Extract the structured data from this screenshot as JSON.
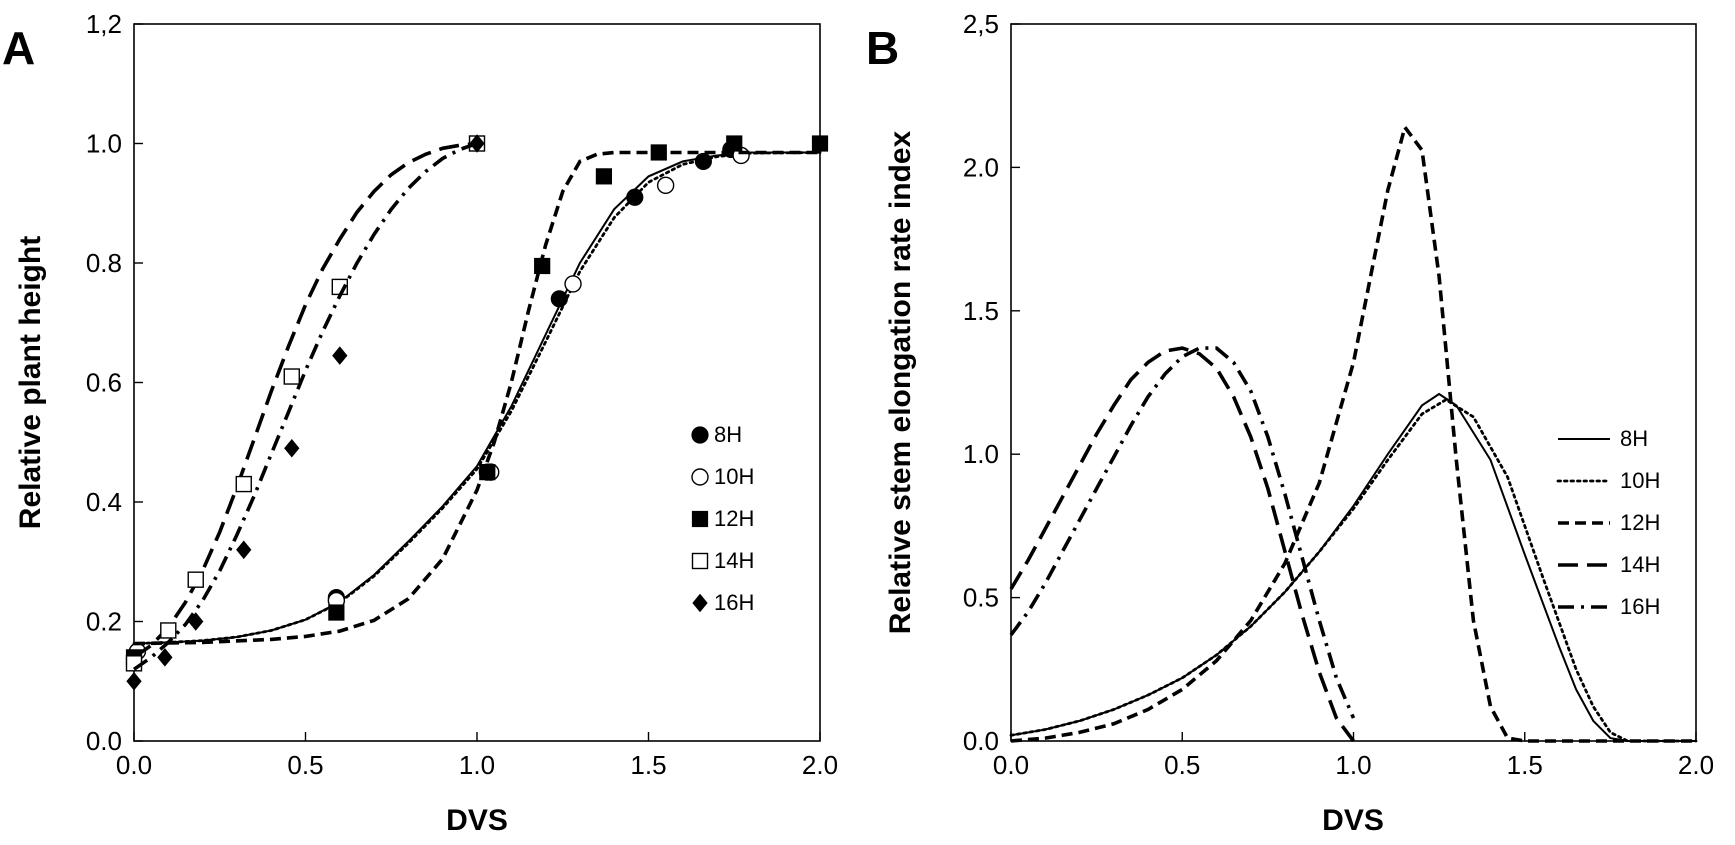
{
  "chart_data": [
    {
      "type": "scatter",
      "panel_label": "A",
      "xlabel": "DVS",
      "ylabel": "Relative plant height",
      "xlim": [
        0.0,
        2.0
      ],
      "ylim": [
        0.0,
        1.2
      ],
      "x_ticks": [
        "0.0",
        "0.5",
        "1.0",
        "1.5",
        "2.0"
      ],
      "y_ticks": [
        "0.0",
        "0.2",
        "0.4",
        "0.6",
        "0.8",
        "1.0",
        "1,2"
      ],
      "grid": false,
      "legend_position": "right-middle",
      "series": [
        {
          "name": "8H",
          "marker": "filled-circle",
          "line": "solid",
          "points": [
            [
              0.01,
              0.15
            ],
            [
              0.59,
              0.24
            ],
            [
              1.03,
              0.45
            ],
            [
              1.24,
              0.74
            ],
            [
              1.46,
              0.91
            ],
            [
              1.66,
              0.97
            ],
            [
              1.74,
              0.99
            ]
          ],
          "curve": [
            [
              0.0,
              0.163
            ],
            [
              0.1,
              0.165
            ],
            [
              0.2,
              0.168
            ],
            [
              0.3,
              0.174
            ],
            [
              0.4,
              0.185
            ],
            [
              0.5,
              0.203
            ],
            [
              0.6,
              0.233
            ],
            [
              0.7,
              0.278
            ],
            [
              0.8,
              0.334
            ],
            [
              0.9,
              0.393
            ],
            [
              1.0,
              0.46
            ],
            [
              1.1,
              0.56
            ],
            [
              1.2,
              0.68
            ],
            [
              1.3,
              0.8
            ],
            [
              1.4,
              0.89
            ],
            [
              1.5,
              0.945
            ],
            [
              1.6,
              0.97
            ],
            [
              1.7,
              0.98
            ],
            [
              1.8,
              0.985
            ],
            [
              2.0,
              0.985
            ]
          ]
        },
        {
          "name": "10H",
          "marker": "open-circle",
          "line": "dotted",
          "points": [
            [
              0.01,
              0.15
            ],
            [
              0.59,
              0.235
            ],
            [
              1.04,
              0.45
            ],
            [
              1.28,
              0.765
            ],
            [
              1.55,
              0.93
            ],
            [
              1.77,
              0.98
            ]
          ],
          "curve": [
            [
              0.0,
              0.163
            ],
            [
              0.1,
              0.165
            ],
            [
              0.2,
              0.168
            ],
            [
              0.3,
              0.174
            ],
            [
              0.4,
              0.185
            ],
            [
              0.5,
              0.203
            ],
            [
              0.6,
              0.232
            ],
            [
              0.7,
              0.276
            ],
            [
              0.8,
              0.331
            ],
            [
              0.9,
              0.39
            ],
            [
              1.0,
              0.455
            ],
            [
              1.1,
              0.552
            ],
            [
              1.2,
              0.668
            ],
            [
              1.3,
              0.786
            ],
            [
              1.4,
              0.876
            ],
            [
              1.5,
              0.935
            ],
            [
              1.6,
              0.965
            ],
            [
              1.7,
              0.978
            ],
            [
              1.8,
              0.984
            ],
            [
              2.0,
              0.985
            ]
          ]
        },
        {
          "name": "12H",
          "marker": "filled-square",
          "line": "dashed",
          "points": [
            [
              0.0,
              0.14
            ],
            [
              0.59,
              0.215
            ],
            [
              1.03,
              0.45
            ],
            [
              1.19,
              0.795
            ],
            [
              1.37,
              0.945
            ],
            [
              1.53,
              0.985
            ],
            [
              1.75,
              1.0
            ],
            [
              2.0,
              1.0
            ]
          ],
          "curve": [
            [
              0.0,
              0.163
            ],
            [
              0.2,
              0.165
            ],
            [
              0.4,
              0.17
            ],
            [
              0.5,
              0.175
            ],
            [
              0.6,
              0.184
            ],
            [
              0.7,
              0.202
            ],
            [
              0.8,
              0.238
            ],
            [
              0.9,
              0.305
            ],
            [
              1.0,
              0.42
            ],
            [
              1.05,
              0.5
            ],
            [
              1.1,
              0.6
            ],
            [
              1.15,
              0.72
            ],
            [
              1.2,
              0.83
            ],
            [
              1.25,
              0.92
            ],
            [
              1.3,
              0.97
            ],
            [
              1.35,
              0.982
            ],
            [
              1.4,
              0.985
            ],
            [
              1.6,
              0.985
            ],
            [
              2.0,
              0.985
            ]
          ]
        },
        {
          "name": "14H",
          "marker": "open-square",
          "line": "long-dash",
          "points": [
            [
              0.0,
              0.13
            ],
            [
              0.1,
              0.185
            ],
            [
              0.18,
              0.27
            ],
            [
              0.32,
              0.43
            ],
            [
              0.46,
              0.61
            ],
            [
              0.6,
              0.76
            ],
            [
              1.0,
              1.0
            ]
          ],
          "curve": [
            [
              0.0,
              0.14
            ],
            [
              0.05,
              0.16
            ],
            [
              0.1,
              0.19
            ],
            [
              0.15,
              0.232
            ],
            [
              0.2,
              0.285
            ],
            [
              0.25,
              0.35
            ],
            [
              0.3,
              0.425
            ],
            [
              0.35,
              0.505
            ],
            [
              0.4,
              0.585
            ],
            [
              0.45,
              0.66
            ],
            [
              0.5,
              0.73
            ],
            [
              0.55,
              0.79
            ],
            [
              0.6,
              0.84
            ],
            [
              0.65,
              0.885
            ],
            [
              0.7,
              0.92
            ],
            [
              0.75,
              0.948
            ],
            [
              0.8,
              0.968
            ],
            [
              0.85,
              0.982
            ],
            [
              0.9,
              0.992
            ],
            [
              0.95,
              0.997
            ],
            [
              1.0,
              1.0
            ]
          ]
        },
        {
          "name": "16H",
          "marker": "filled-diamond",
          "line": "dash-dot",
          "points": [
            [
              0.0,
              0.1
            ],
            [
              0.09,
              0.14
            ],
            [
              0.18,
              0.2
            ],
            [
              0.32,
              0.32
            ],
            [
              0.46,
              0.49
            ],
            [
              0.6,
              0.645
            ],
            [
              1.0,
              1.0
            ]
          ],
          "curve": [
            [
              0.0,
              0.12
            ],
            [
              0.05,
              0.14
            ],
            [
              0.1,
              0.165
            ],
            [
              0.15,
              0.195
            ],
            [
              0.2,
              0.235
            ],
            [
              0.25,
              0.285
            ],
            [
              0.3,
              0.345
            ],
            [
              0.35,
              0.41
            ],
            [
              0.4,
              0.48
            ],
            [
              0.45,
              0.55
            ],
            [
              0.5,
              0.62
            ],
            [
              0.55,
              0.685
            ],
            [
              0.6,
              0.745
            ],
            [
              0.65,
              0.8
            ],
            [
              0.7,
              0.848
            ],
            [
              0.75,
              0.89
            ],
            [
              0.8,
              0.925
            ],
            [
              0.85,
              0.953
            ],
            [
              0.9,
              0.975
            ],
            [
              0.95,
              0.99
            ],
            [
              1.0,
              1.0
            ]
          ]
        }
      ]
    },
    {
      "type": "line",
      "panel_label": "B",
      "xlabel": "DVS",
      "ylabel": "Relative stem elongation rate index",
      "xlim": [
        0.0,
        2.0
      ],
      "ylim": [
        0.0,
        2.5
      ],
      "x_ticks": [
        "0.0",
        "0.5",
        "1.0",
        "1.5",
        "2.0"
      ],
      "y_ticks": [
        "0.0",
        "0.5",
        "1.0",
        "1.5",
        "2.0",
        "2,5"
      ],
      "grid": false,
      "legend_position": "right-middle",
      "series": [
        {
          "name": "8H",
          "line": "solid",
          "curve": [
            [
              0.0,
              0.02
            ],
            [
              0.1,
              0.04
            ],
            [
              0.2,
              0.07
            ],
            [
              0.3,
              0.11
            ],
            [
              0.4,
              0.16
            ],
            [
              0.5,
              0.22
            ],
            [
              0.6,
              0.3
            ],
            [
              0.7,
              0.4
            ],
            [
              0.8,
              0.52
            ],
            [
              0.9,
              0.66
            ],
            [
              1.0,
              0.82
            ],
            [
              1.1,
              1.0
            ],
            [
              1.2,
              1.17
            ],
            [
              1.25,
              1.21
            ],
            [
              1.3,
              1.17
            ],
            [
              1.4,
              0.98
            ],
            [
              1.5,
              0.65
            ],
            [
              1.6,
              0.33
            ],
            [
              1.65,
              0.18
            ],
            [
              1.7,
              0.07
            ],
            [
              1.75,
              0.01
            ],
            [
              1.8,
              0.0
            ],
            [
              2.0,
              0.0
            ]
          ]
        },
        {
          "name": "10H",
          "line": "dotted",
          "curve": [
            [
              0.0,
              0.02
            ],
            [
              0.1,
              0.04
            ],
            [
              0.2,
              0.07
            ],
            [
              0.3,
              0.11
            ],
            [
              0.4,
              0.16
            ],
            [
              0.5,
              0.22
            ],
            [
              0.6,
              0.3
            ],
            [
              0.7,
              0.4
            ],
            [
              0.8,
              0.52
            ],
            [
              0.9,
              0.66
            ],
            [
              1.0,
              0.81
            ],
            [
              1.1,
              0.98
            ],
            [
              1.2,
              1.14
            ],
            [
              1.27,
              1.19
            ],
            [
              1.35,
              1.13
            ],
            [
              1.45,
              0.92
            ],
            [
              1.55,
              0.58
            ],
            [
              1.65,
              0.25
            ],
            [
              1.7,
              0.12
            ],
            [
              1.75,
              0.03
            ],
            [
              1.8,
              0.0
            ],
            [
              2.0,
              0.0
            ]
          ]
        },
        {
          "name": "12H",
          "line": "dashed",
          "curve": [
            [
              0.0,
              0.0
            ],
            [
              0.1,
              0.01
            ],
            [
              0.2,
              0.03
            ],
            [
              0.3,
              0.06
            ],
            [
              0.4,
              0.11
            ],
            [
              0.5,
              0.18
            ],
            [
              0.6,
              0.28
            ],
            [
              0.7,
              0.42
            ],
            [
              0.8,
              0.62
            ],
            [
              0.9,
              0.9
            ],
            [
              1.0,
              1.32
            ],
            [
              1.05,
              1.62
            ],
            [
              1.1,
              1.92
            ],
            [
              1.15,
              2.14
            ],
            [
              1.2,
              2.06
            ],
            [
              1.25,
              1.62
            ],
            [
              1.3,
              0.98
            ],
            [
              1.35,
              0.42
            ],
            [
              1.4,
              0.12
            ],
            [
              1.45,
              0.01
            ],
            [
              1.5,
              0.0
            ],
            [
              2.0,
              0.0
            ]
          ]
        },
        {
          "name": "14H",
          "line": "long-dash",
          "curve": [
            [
              0.0,
              0.53
            ],
            [
              0.05,
              0.63
            ],
            [
              0.1,
              0.74
            ],
            [
              0.15,
              0.85
            ],
            [
              0.2,
              0.96
            ],
            [
              0.25,
              1.07
            ],
            [
              0.3,
              1.17
            ],
            [
              0.35,
              1.26
            ],
            [
              0.4,
              1.32
            ],
            [
              0.45,
              1.36
            ],
            [
              0.5,
              1.37
            ],
            [
              0.55,
              1.35
            ],
            [
              0.6,
              1.3
            ],
            [
              0.65,
              1.2
            ],
            [
              0.7,
              1.06
            ],
            [
              0.75,
              0.88
            ],
            [
              0.8,
              0.66
            ],
            [
              0.85,
              0.44
            ],
            [
              0.9,
              0.24
            ],
            [
              0.95,
              0.08
            ],
            [
              1.0,
              0.0
            ]
          ]
        },
        {
          "name": "16H",
          "line": "dash-dot",
          "curve": [
            [
              0.0,
              0.37
            ],
            [
              0.05,
              0.45
            ],
            [
              0.1,
              0.55
            ],
            [
              0.15,
              0.66
            ],
            [
              0.2,
              0.77
            ],
            [
              0.25,
              0.88
            ],
            [
              0.3,
              0.99
            ],
            [
              0.35,
              1.1
            ],
            [
              0.4,
              1.2
            ],
            [
              0.45,
              1.28
            ],
            [
              0.5,
              1.34
            ],
            [
              0.55,
              1.37
            ],
            [
              0.6,
              1.37
            ],
            [
              0.65,
              1.32
            ],
            [
              0.7,
              1.22
            ],
            [
              0.75,
              1.06
            ],
            [
              0.8,
              0.86
            ],
            [
              0.85,
              0.64
            ],
            [
              0.9,
              0.42
            ],
            [
              0.95,
              0.22
            ],
            [
              1.0,
              0.08
            ]
          ]
        }
      ]
    }
  ]
}
